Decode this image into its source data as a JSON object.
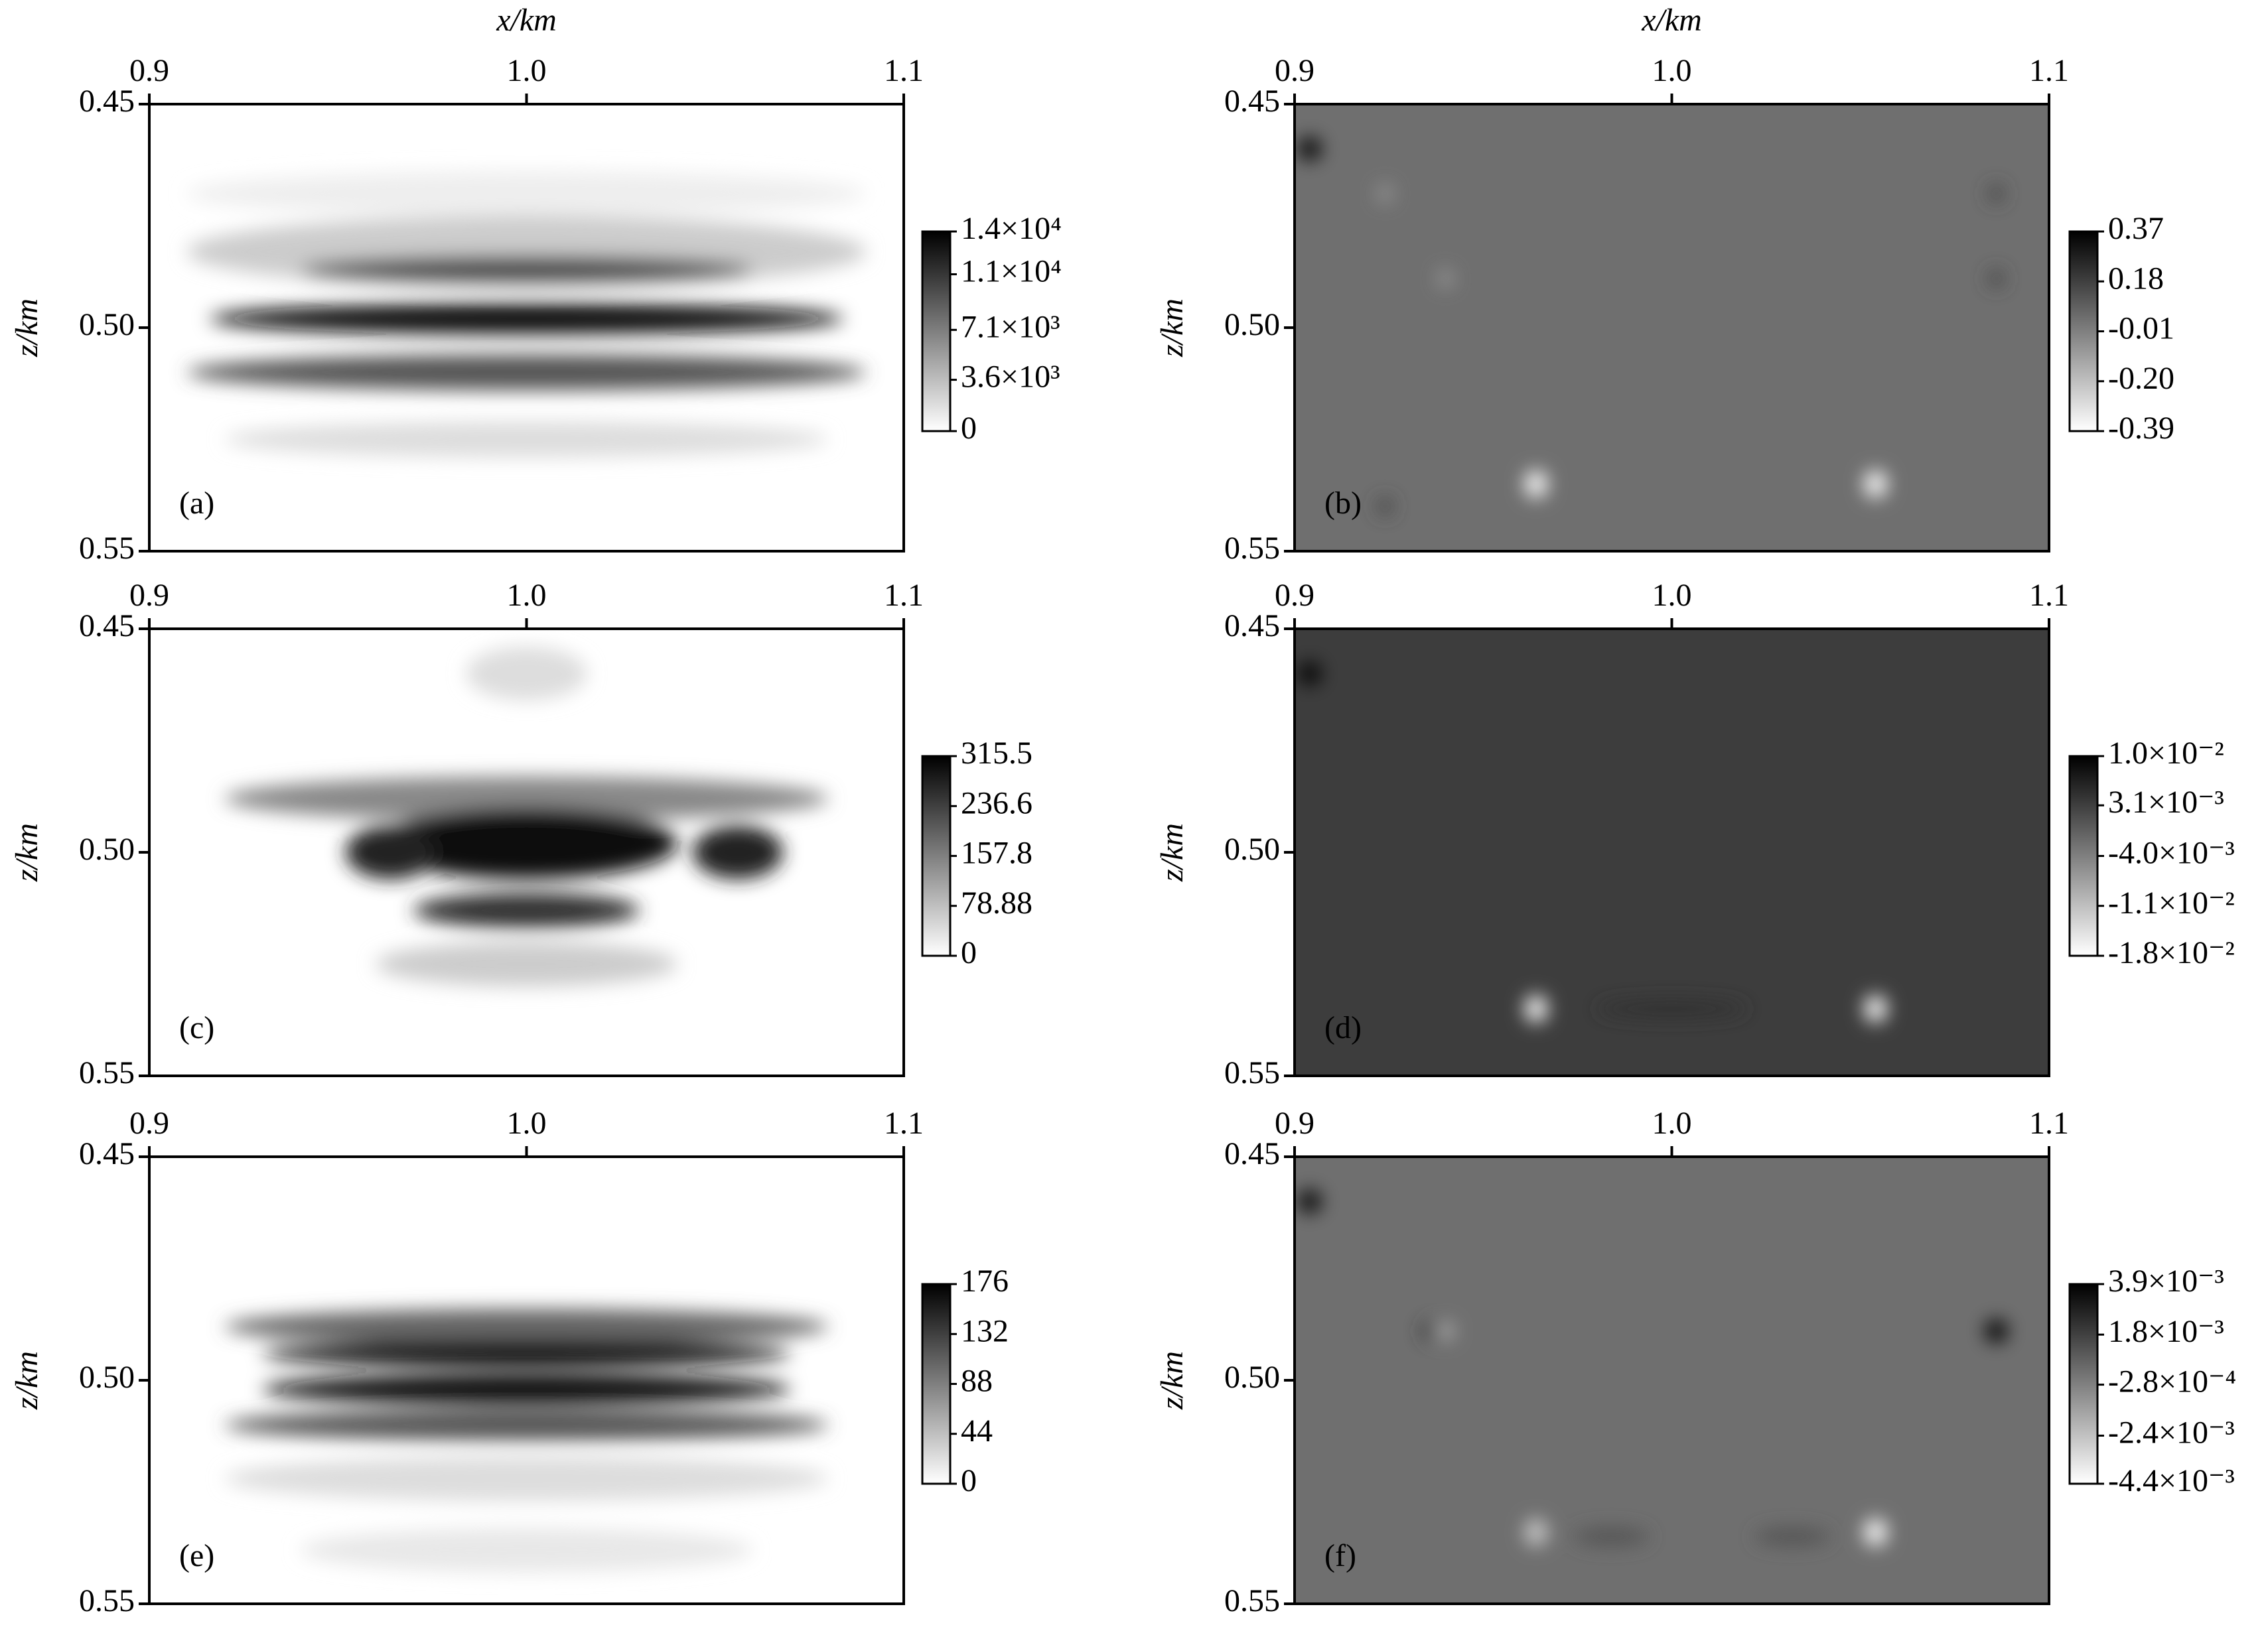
{
  "chart_data": [
    {
      "type": "heatmap",
      "xlabel": "x/km",
      "ylabel": "z/km",
      "label": "(a)",
      "background": "#ffffff",
      "xlim": [
        0.9,
        1.1
      ],
      "xticks": [
        0.9,
        {
          "value": 1,
          "label": "1.0"
        },
        1.1
      ],
      "ylim": [
        0.45,
        0.55
      ],
      "yticks": [
        0.45,
        {
          "value": 0.5,
          "label": "0.50"
        },
        0.55
      ],
      "clim": [
        0,
        14000
      ],
      "cticks": [
        {
          "value": 14000,
          "label": "1.4×10⁴"
        },
        {
          "value": 11000,
          "label": "1.1×10⁴"
        },
        {
          "value": 7100,
          "label": "7.1×10³"
        },
        {
          "value": 3600,
          "label": "3.6×10³"
        },
        0
      ]
    },
    {
      "type": "heatmap",
      "xlabel": "x/km",
      "ylabel": "z/km",
      "label": "(b)",
      "background": "#6f6f6f",
      "xlim": [
        0.9,
        1.1
      ],
      "xticks": [
        0.9,
        {
          "value": 1,
          "label": "1.0"
        },
        1.1
      ],
      "ylim": [
        0.45,
        0.55
      ],
      "yticks": [
        0.45,
        {
          "value": 0.5,
          "label": "0.50"
        },
        0.55
      ],
      "clim": [
        -0.39,
        0.37
      ],
      "cticks": [
        0.37,
        0.18,
        -0.01,
        {
          "value": -0.2,
          "label": "-0.20"
        },
        -0.39
      ]
    },
    {
      "type": "heatmap",
      "ylabel": "z/km",
      "label": "(c)",
      "background": "#ffffff",
      "xlim": [
        0.9,
        1.1
      ],
      "xticks": [
        0.9,
        {
          "value": 1,
          "label": "1.0"
        },
        1.1
      ],
      "ylim": [
        0.45,
        0.55
      ],
      "yticks": [
        0.45,
        {
          "value": 0.5,
          "label": "0.50"
        },
        0.55
      ],
      "clim": [
        0,
        315.5
      ],
      "cticks": [
        315.5,
        236.6,
        157.8,
        78.88,
        0
      ]
    },
    {
      "type": "heatmap",
      "ylabel": "z/km",
      "label": "(d)",
      "background": "#3d3d3d",
      "xlim": [
        0.9,
        1.1
      ],
      "xticks": [
        0.9,
        {
          "value": 1,
          "label": "1.0"
        },
        1.1
      ],
      "ylim": [
        0.45,
        0.55
      ],
      "yticks": [
        0.45,
        {
          "value": 0.5,
          "label": "0.50"
        },
        0.55
      ],
      "clim": [
        -0.018,
        0.01
      ],
      "cticks": [
        {
          "value": 0.01,
          "label": "1.0×10⁻²"
        },
        {
          "value": 0.0031,
          "label": "3.1×10⁻³"
        },
        {
          "value": -0.004,
          "label": "-4.0×10⁻³"
        },
        {
          "value": -0.011,
          "label": "-1.1×10⁻²"
        },
        {
          "value": -0.018,
          "label": "-1.8×10⁻²"
        }
      ]
    },
    {
      "type": "heatmap",
      "ylabel": "z/km",
      "label": "(e)",
      "background": "#ffffff",
      "xlim": [
        0.9,
        1.1
      ],
      "xticks": [
        0.9,
        {
          "value": 1,
          "label": "1.0"
        },
        1.1
      ],
      "ylim": [
        0.45,
        0.55
      ],
      "yticks": [
        0.45,
        {
          "value": 0.5,
          "label": "0.50"
        },
        0.55
      ],
      "clim": [
        0,
        176
      ],
      "cticks": [
        176,
        132,
        88,
        44,
        0
      ]
    },
    {
      "type": "heatmap",
      "ylabel": "z/km",
      "label": "(f)",
      "background": "#6f6f6f",
      "xlim": [
        0.9,
        1.1
      ],
      "xticks": [
        0.9,
        {
          "value": 1,
          "label": "1.0"
        },
        1.1
      ],
      "ylim": [
        0.45,
        0.55
      ],
      "yticks": [
        0.45,
        {
          "value": 0.5,
          "label": "0.50"
        },
        0.55
      ],
      "clim": [
        -0.0044,
        0.0039
      ],
      "cticks": [
        {
          "value": 0.0039,
          "label": "3.9×10⁻³"
        },
        {
          "value": 0.0018,
          "label": "1.8×10⁻³"
        },
        {
          "value": -0.00028,
          "label": "-2.8×10⁻⁴"
        },
        {
          "value": -0.0024,
          "label": "-2.4×10⁻³"
        },
        {
          "value": -0.0044,
          "label": "-4.4×10⁻³"
        }
      ]
    }
  ]
}
